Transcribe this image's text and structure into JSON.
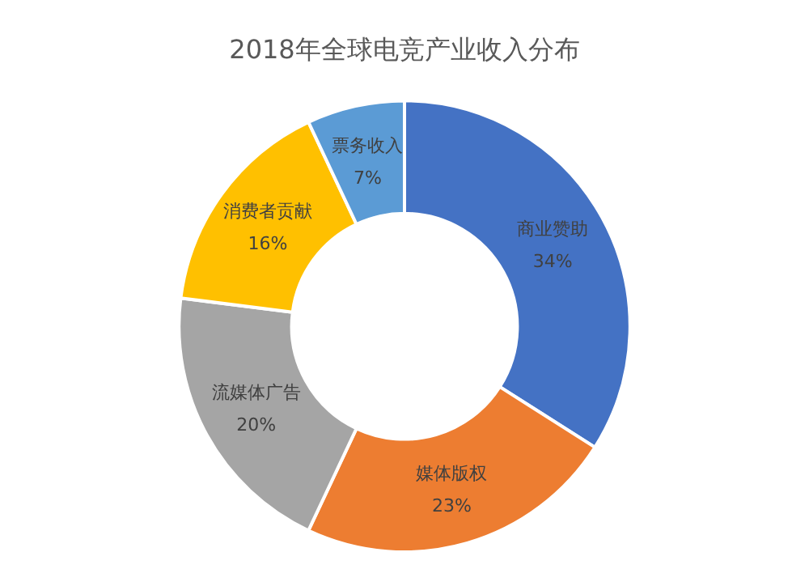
{
  "chart_data": {
    "type": "donut",
    "title": "2018年全球电竞产业收入分布",
    "categories": [
      "商业赞助",
      "媒体版权",
      "流媒体广告",
      "消费者贡献",
      "票务收入"
    ],
    "values": [
      34,
      23,
      20,
      16,
      7
    ],
    "value_labels": [
      "34%",
      "23%",
      "20%",
      "16%",
      "7%"
    ],
    "colors": [
      "#4472c4",
      "#ed7d31",
      "#a5a5a5",
      "#ffc000",
      "#5b9bd5"
    ],
    "legend": false
  }
}
